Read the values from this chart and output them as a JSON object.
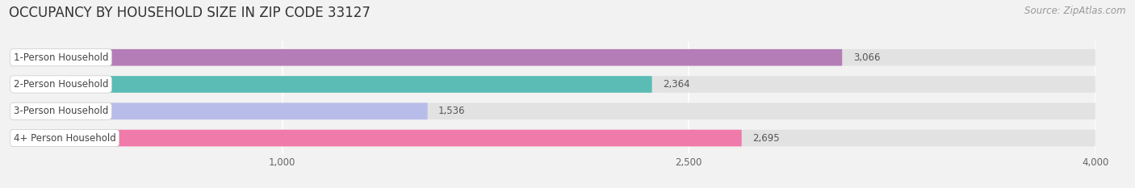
{
  "title": "OCCUPANCY BY HOUSEHOLD SIZE IN ZIP CODE 33127",
  "source": "Source: ZipAtlas.com",
  "categories": [
    "1-Person Household",
    "2-Person Household",
    "3-Person Household",
    "4+ Person Household"
  ],
  "values": [
    3066,
    2364,
    1536,
    2695
  ],
  "bar_colors": [
    "#b57db8",
    "#5abcb5",
    "#b8bce8",
    "#f07aaa"
  ],
  "xlim": [
    0,
    4000
  ],
  "xticks": [
    1000,
    2500,
    4000
  ],
  "xtick_labels": [
    "1,000",
    "2,500",
    "4,000"
  ],
  "value_labels": [
    "3,066",
    "2,364",
    "1,536",
    "2,695"
  ],
  "background_color": "#f2f2f2",
  "bar_bg_color": "#e2e2e2",
  "title_fontsize": 12,
  "label_fontsize": 8.5,
  "value_fontsize": 8.5,
  "source_fontsize": 8.5
}
